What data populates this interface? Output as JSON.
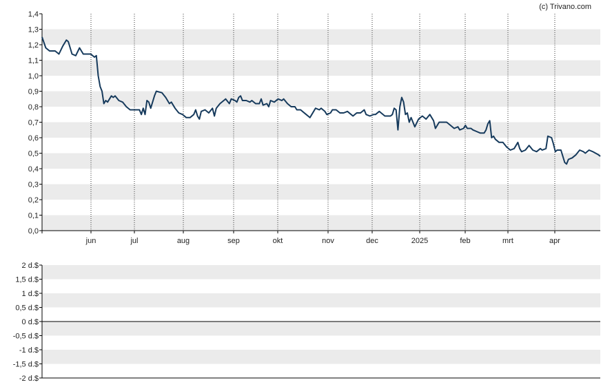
{
  "copyright": "(c) Trivano.com",
  "colors": {
    "line": "#163a5c",
    "band": "#ebebeb",
    "background": "#ffffff",
    "axis": "#000000",
    "text": "#222222"
  },
  "chart_data": [
    {
      "type": "line",
      "ylim": [
        0,
        1.4
      ],
      "y_ticks": [
        "0,0",
        "0,1",
        "0,2",
        "0,3",
        "0,4",
        "0,5",
        "0,6",
        "0,7",
        "0,8",
        "0,9",
        "1,0",
        "1,1",
        "1,2",
        "1,3",
        "1,4"
      ],
      "x_ticks": [
        "jun",
        "jul",
        "aug",
        "sep",
        "okt",
        "nov",
        "dec",
        "2025",
        "feb",
        "mrt",
        "apr"
      ],
      "grid": "horizontal alternating bands, dotted vertical month lines",
      "series": [
        {
          "values": [
            [
              0,
              1.25
            ],
            [
              2,
              1.18
            ],
            [
              4,
              1.16
            ],
            [
              7,
              1.16
            ],
            [
              9,
              1.14
            ],
            [
              11,
              1.19
            ],
            [
              13,
              1.23
            ],
            [
              14,
              1.22
            ],
            [
              16,
              1.14
            ],
            [
              18,
              1.13
            ],
            [
              20,
              1.18
            ],
            [
              22,
              1.14
            ],
            [
              26,
              1.14
            ],
            [
              28,
              1.12
            ],
            [
              29,
              1.13
            ],
            [
              30,
              1.0
            ],
            [
              31,
              0.93
            ],
            [
              32,
              0.9
            ],
            [
              33,
              0.82
            ],
            [
              34,
              0.84
            ],
            [
              35,
              0.83
            ],
            [
              37,
              0.87
            ],
            [
              38,
              0.86
            ],
            [
              39,
              0.87
            ],
            [
              41,
              0.84
            ],
            [
              43,
              0.83
            ],
            [
              45,
              0.8
            ],
            [
              47,
              0.78
            ],
            [
              49,
              0.78
            ],
            [
              52,
              0.78
            ],
            [
              53,
              0.75
            ],
            [
              54,
              0.79
            ],
            [
              55,
              0.75
            ],
            [
              56,
              0.84
            ],
            [
              57,
              0.83
            ],
            [
              58,
              0.79
            ],
            [
              60,
              0.87
            ],
            [
              61,
              0.9
            ],
            [
              64,
              0.89
            ],
            [
              66,
              0.86
            ],
            [
              68,
              0.82
            ],
            [
              69,
              0.83
            ],
            [
              71,
              0.79
            ],
            [
              73,
              0.76
            ],
            [
              75,
              0.75
            ],
            [
              77,
              0.73
            ],
            [
              79,
              0.73
            ],
            [
              81,
              0.75
            ],
            [
              82,
              0.78
            ],
            [
              83,
              0.74
            ],
            [
              84,
              0.72
            ],
            [
              85,
              0.77
            ],
            [
              87,
              0.78
            ],
            [
              89,
              0.76
            ],
            [
              91,
              0.79
            ],
            [
              92,
              0.74
            ],
            [
              93,
              0.79
            ],
            [
              95,
              0.82
            ],
            [
              97,
              0.84
            ],
            [
              98,
              0.85
            ],
            [
              100,
              0.82
            ],
            [
              101,
              0.85
            ],
            [
              103,
              0.84
            ],
            [
              104,
              0.83
            ],
            [
              105,
              0.86
            ],
            [
              106,
              0.87
            ],
            [
              107,
              0.84
            ],
            [
              109,
              0.84
            ],
            [
              111,
              0.83
            ],
            [
              112,
              0.84
            ],
            [
              114,
              0.82
            ],
            [
              116,
              0.82
            ],
            [
              117,
              0.85
            ],
            [
              118,
              0.81
            ],
            [
              120,
              0.82
            ],
            [
              121,
              0.8
            ],
            [
              122,
              0.84
            ],
            [
              124,
              0.83
            ],
            [
              126,
              0.85
            ],
            [
              128,
              0.84
            ],
            [
              129,
              0.85
            ],
            [
              131,
              0.82
            ],
            [
              133,
              0.8
            ],
            [
              135,
              0.8
            ],
            [
              136,
              0.78
            ],
            [
              138,
              0.78
            ],
            [
              141,
              0.75
            ],
            [
              142,
              0.74
            ],
            [
              143,
              0.73
            ],
            [
              145,
              0.77
            ],
            [
              146,
              0.79
            ],
            [
              148,
              0.78
            ],
            [
              149,
              0.79
            ],
            [
              151,
              0.77
            ],
            [
              152,
              0.75
            ],
            [
              154,
              0.76
            ],
            [
              155,
              0.78
            ],
            [
              157,
              0.78
            ],
            [
              159,
              0.76
            ],
            [
              161,
              0.76
            ],
            [
              163,
              0.77
            ],
            [
              165,
              0.75
            ],
            [
              166,
              0.74
            ],
            [
              168,
              0.76
            ],
            [
              170,
              0.76
            ],
            [
              172,
              0.78
            ],
            [
              173,
              0.75
            ],
            [
              175,
              0.74
            ],
            [
              177,
              0.75
            ],
            [
              178,
              0.75
            ],
            [
              180,
              0.77
            ],
            [
              181,
              0.76
            ],
            [
              183,
              0.74
            ],
            [
              184,
              0.74
            ],
            [
              186,
              0.74
            ],
            [
              187,
              0.75
            ],
            [
              188,
              0.79
            ],
            [
              189,
              0.78
            ],
            [
              190,
              0.65
            ],
            [
              191,
              0.8
            ],
            [
              192,
              0.86
            ],
            [
              193,
              0.83
            ],
            [
              194,
              0.75
            ],
            [
              195,
              0.76
            ],
            [
              196,
              0.7
            ],
            [
              197,
              0.73
            ],
            [
              198,
              0.7
            ],
            [
              199,
              0.67
            ],
            [
              201,
              0.72
            ],
            [
              203,
              0.74
            ],
            [
              205,
              0.72
            ],
            [
              207,
              0.75
            ],
            [
              209,
              0.71
            ],
            [
              210,
              0.66
            ],
            [
              212,
              0.7
            ],
            [
              214,
              0.7
            ],
            [
              216,
              0.7
            ],
            [
              218,
              0.68
            ],
            [
              220,
              0.66
            ],
            [
              222,
              0.67
            ],
            [
              223,
              0.65
            ],
            [
              225,
              0.66
            ],
            [
              226,
              0.68
            ],
            [
              227,
              0.66
            ],
            [
              229,
              0.66
            ],
            [
              230,
              0.65
            ],
            [
              232,
              0.64
            ],
            [
              234,
              0.63
            ],
            [
              236,
              0.63
            ],
            [
              237,
              0.65
            ],
            [
              238,
              0.69
            ],
            [
              239,
              0.71
            ],
            [
              240,
              0.6
            ],
            [
              241,
              0.61
            ],
            [
              242,
              0.59
            ],
            [
              244,
              0.57
            ],
            [
              246,
              0.57
            ],
            [
              248,
              0.54
            ],
            [
              250,
              0.52
            ],
            [
              252,
              0.53
            ],
            [
              254,
              0.57
            ],
            [
              255,
              0.53
            ],
            [
              256,
              0.51
            ],
            [
              258,
              0.52
            ],
            [
              260,
              0.55
            ],
            [
              262,
              0.52
            ],
            [
              264,
              0.51
            ],
            [
              266,
              0.53
            ],
            [
              267,
              0.52
            ],
            [
              269,
              0.53
            ],
            [
              270,
              0.61
            ],
            [
              272,
              0.6
            ],
            [
              273,
              0.56
            ],
            [
              274,
              0.51
            ],
            [
              275,
              0.52
            ],
            [
              277,
              0.52
            ],
            [
              279,
              0.44
            ],
            [
              280,
              0.43
            ],
            [
              281,
              0.46
            ],
            [
              283,
              0.47
            ],
            [
              285,
              0.49
            ],
            [
              287,
              0.52
            ],
            [
              289,
              0.51
            ],
            [
              290,
              0.5
            ],
            [
              292,
              0.52
            ],
            [
              294,
              0.51
            ],
            [
              297,
              0.49
            ],
            [
              298,
              0.48
            ]
          ]
        }
      ]
    },
    {
      "type": "bar",
      "ylim": [
        -2,
        2
      ],
      "y_ticks": [
        "2 d.$",
        "1,5 d.$",
        "1 d.$",
        "0,5 d.$",
        "0 d.$",
        "-0,5 d.$",
        "-1 d.$",
        "-1,5 d.$",
        "-2 d.$"
      ],
      "grid": "horizontal alternating bands",
      "series": []
    }
  ]
}
